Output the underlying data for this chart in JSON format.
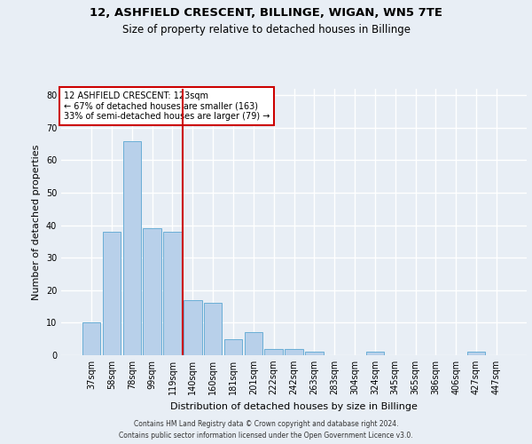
{
  "title1": "12, ASHFIELD CRESCENT, BILLINGE, WIGAN, WN5 7TE",
  "title2": "Size of property relative to detached houses in Billinge",
  "xlabel": "Distribution of detached houses by size in Billinge",
  "ylabel": "Number of detached properties",
  "categories": [
    "37sqm",
    "58sqm",
    "78sqm",
    "99sqm",
    "119sqm",
    "140sqm",
    "160sqm",
    "181sqm",
    "201sqm",
    "222sqm",
    "242sqm",
    "263sqm",
    "283sqm",
    "304sqm",
    "324sqm",
    "345sqm",
    "365sqm",
    "386sqm",
    "406sqm",
    "427sqm",
    "447sqm"
  ],
  "values": [
    10,
    38,
    66,
    39,
    38,
    17,
    16,
    5,
    7,
    2,
    2,
    1,
    0,
    0,
    1,
    0,
    0,
    0,
    0,
    1,
    0
  ],
  "bar_color": "#b8d0ea",
  "bar_edge_color": "#6aaed6",
  "property_line_x": 4.5,
  "annotation_text1": "12 ASHFIELD CRESCENT: 123sqm",
  "annotation_text2": "← 67% of detached houses are smaller (163)",
  "annotation_text3": "33% of semi-detached houses are larger (79) →",
  "annotation_box_color": "#ffffff",
  "annotation_border_color": "#cc0000",
  "line_color": "#cc0000",
  "ylim": [
    0,
    82
  ],
  "yticks": [
    0,
    10,
    20,
    30,
    40,
    50,
    60,
    70,
    80
  ],
  "footer1": "Contains HM Land Registry data © Crown copyright and database right 2024.",
  "footer2": "Contains public sector information licensed under the Open Government Licence v3.0.",
  "bg_color": "#e8eef5",
  "plot_bg_color": "#e8eef5",
  "grid_color": "#ffffff",
  "title1_fontsize": 9.5,
  "title2_fontsize": 8.5,
  "tick_fontsize": 7,
  "ylabel_fontsize": 8,
  "xlabel_fontsize": 8,
  "annot_fontsize": 7,
  "footer_fontsize": 5.5
}
